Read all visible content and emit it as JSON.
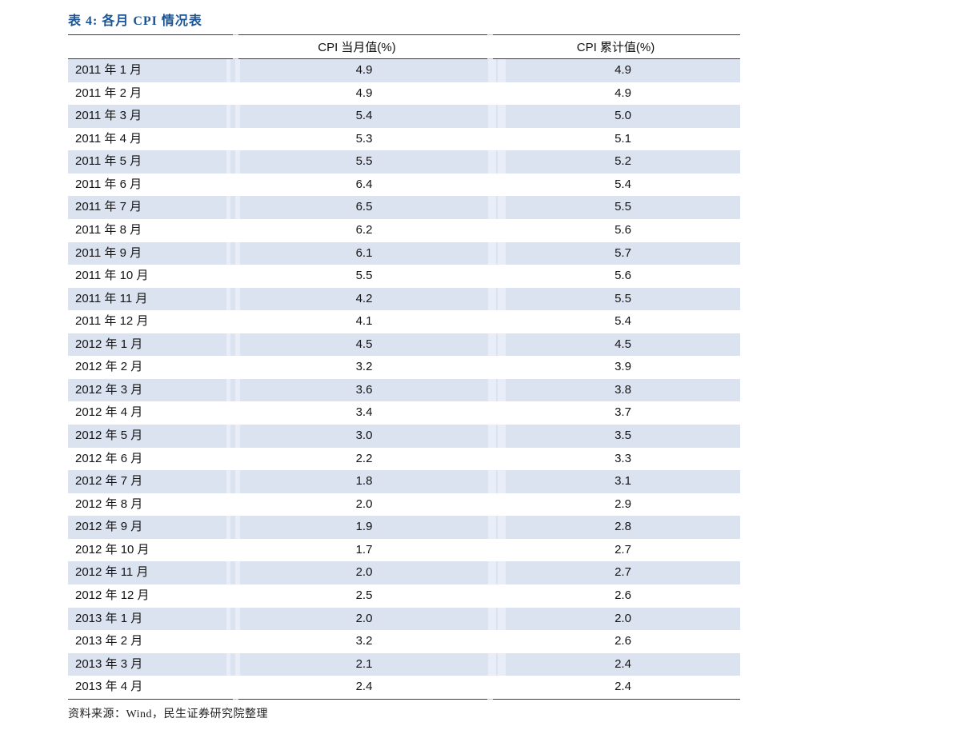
{
  "page": {
    "title": "表 4: 各月 CPI 情况表",
    "source": "资料来源：Wind，民生证券研究院整理"
  },
  "table": {
    "columns": [
      {
        "label": "CPI 当月值(%)"
      },
      {
        "label": "CPI 累计值(%)"
      }
    ],
    "rows": [
      {
        "month": "2011 年 1 月",
        "current": "4.9",
        "cumulative": "4.9"
      },
      {
        "month": "2011 年 2 月",
        "current": "4.9",
        "cumulative": "4.9"
      },
      {
        "month": "2011 年 3 月",
        "current": "5.4",
        "cumulative": "5.0"
      },
      {
        "month": "2011 年 4 月",
        "current": "5.3",
        "cumulative": "5.1"
      },
      {
        "month": "2011 年 5 月",
        "current": "5.5",
        "cumulative": "5.2"
      },
      {
        "month": "2011 年 6 月",
        "current": "6.4",
        "cumulative": "5.4"
      },
      {
        "month": "2011 年 7 月",
        "current": "6.5",
        "cumulative": "5.5"
      },
      {
        "month": "2011 年 8 月",
        "current": "6.2",
        "cumulative": "5.6"
      },
      {
        "month": "2011 年 9 月",
        "current": "6.1",
        "cumulative": "5.7"
      },
      {
        "month": "2011 年 10 月",
        "current": "5.5",
        "cumulative": "5.6"
      },
      {
        "month": "2011 年 11 月",
        "current": "4.2",
        "cumulative": "5.5"
      },
      {
        "month": "2011 年 12 月",
        "current": "4.1",
        "cumulative": "5.4"
      },
      {
        "month": "2012 年 1 月",
        "current": "4.5",
        "cumulative": "4.5"
      },
      {
        "month": "2012 年 2 月",
        "current": "3.2",
        "cumulative": "3.9"
      },
      {
        "month": "2012 年 3 月",
        "current": "3.6",
        "cumulative": "3.8"
      },
      {
        "month": "2012 年 4 月",
        "current": "3.4",
        "cumulative": "3.7"
      },
      {
        "month": "2012 年 5 月",
        "current": "3.0",
        "cumulative": "3.5"
      },
      {
        "month": "2012 年 6 月",
        "current": "2.2",
        "cumulative": "3.3"
      },
      {
        "month": "2012 年 7 月",
        "current": "1.8",
        "cumulative": "3.1"
      },
      {
        "month": "2012 年 8 月",
        "current": "2.0",
        "cumulative": "2.9"
      },
      {
        "month": "2012 年 9 月",
        "current": "1.9",
        "cumulative": "2.8"
      },
      {
        "month": "2012 年 10 月",
        "current": "1.7",
        "cumulative": "2.7"
      },
      {
        "month": "2012 年 11 月",
        "current": "2.0",
        "cumulative": "2.7"
      },
      {
        "month": "2012 年 12 月",
        "current": "2.5",
        "cumulative": "2.6"
      },
      {
        "month": "2013 年 1 月",
        "current": "2.0",
        "cumulative": "2.0"
      },
      {
        "month": "2013 年 2 月",
        "current": "3.2",
        "cumulative": "2.6"
      },
      {
        "month": "2013 年 3 月",
        "current": "2.1",
        "cumulative": "2.4"
      },
      {
        "month": "2013 年 4 月",
        "current": "2.4",
        "cumulative": "2.4"
      }
    ]
  },
  "colors": {
    "title_blue": "#1a5493",
    "row_shade": "#dbe2f0",
    "row_shade_light": "#e9edf7",
    "rule": "#3c3c3c"
  }
}
